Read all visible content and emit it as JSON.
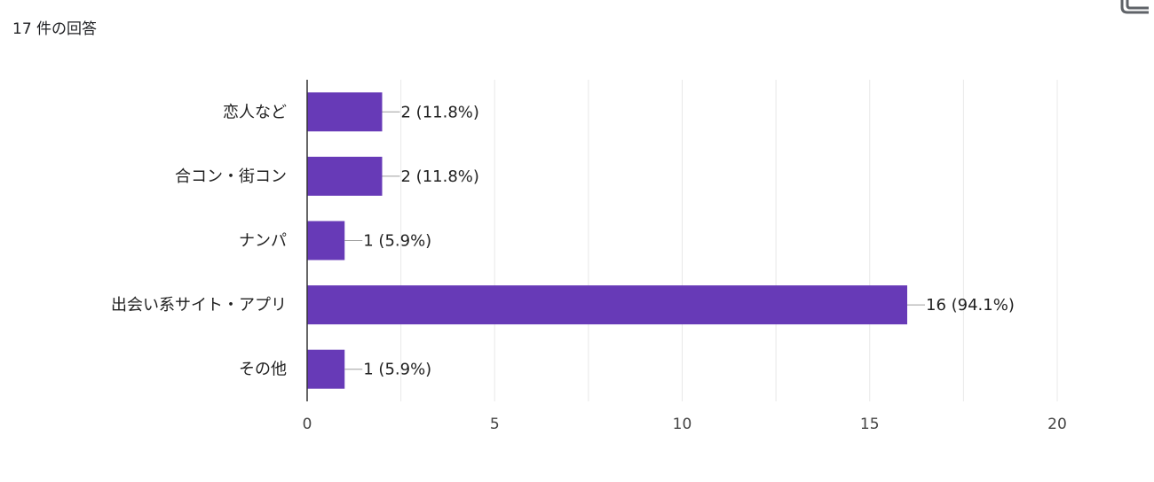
{
  "header": {
    "response_count": "17 件の回答"
  },
  "icons": {
    "copy": "copy-icon"
  },
  "chart_data": {
    "type": "bar",
    "orientation": "horizontal",
    "categories": [
      "恋人など",
      "合コン・街コン",
      "ナンパ",
      "出会い系サイト・アプリ",
      "その他"
    ],
    "values": [
      2,
      2,
      1,
      16,
      1
    ],
    "value_labels": [
      "2 (11.8%)",
      "2 (11.8%)",
      "1 (5.9%)",
      "16 (94.1%)",
      "1 (5.9%)"
    ],
    "xlim": [
      0,
      20
    ],
    "xticks": [
      0,
      5,
      10,
      15,
      20
    ],
    "grid": true,
    "bar_color": "#673ab7"
  }
}
